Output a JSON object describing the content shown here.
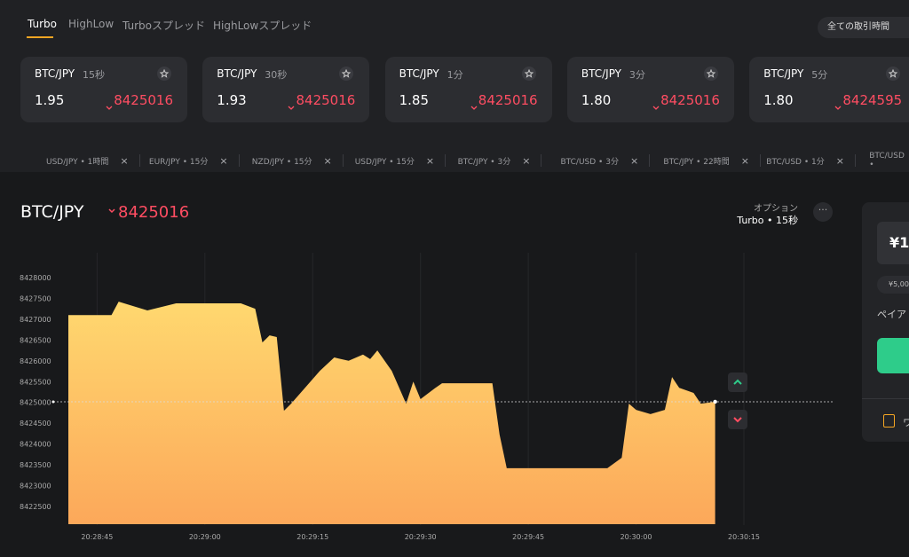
{
  "tabs": [
    "Turbo",
    "HighLow",
    "Turboスプレッド",
    "HighLowスプレッド"
  ],
  "filter": "全ての取引時間",
  "cards": [
    {
      "pair": "BTC/JPY",
      "duration": "15秒",
      "payout": "1.95",
      "price": "8425016"
    },
    {
      "pair": "BTC/JPY",
      "duration": "30秒",
      "payout": "1.93",
      "price": "8425016"
    },
    {
      "pair": "BTC/JPY",
      "duration": "1分",
      "payout": "1.85",
      "price": "8425016"
    },
    {
      "pair": "BTC/JPY",
      "duration": "3分",
      "payout": "1.80",
      "price": "8425016"
    },
    {
      "pair": "BTC/JPY",
      "duration": "5分",
      "payout": "1.80",
      "price": "8424595"
    }
  ],
  "recent": [
    "USD/JPY • 1時間",
    "EUR/JPY • 15分",
    "NZD/JPY • 15分",
    "USD/JPY • 15分",
    "BTC/JPY • 3分",
    "BTC/USD • 3分",
    "BTC/JPY • 22時間",
    "BTC/USD • 1分",
    "BTC/USD •"
  ],
  "asset": {
    "pair": "BTC/JPY",
    "price": "8425016",
    "option_label": "オプション",
    "option": "Turbo • 15秒"
  },
  "panel": {
    "amount": "¥1,",
    "preset": "¥5,00",
    "payout_label": "ペイア",
    "footer": "ワ"
  },
  "chart_data": {
    "type": "area",
    "color_top": "#ffd86f",
    "color_bottom": "#fca85a",
    "x": [
      "20:28:41",
      "20:28:47",
      "20:28:48",
      "20:28:52",
      "20:28:56",
      "20:29:05",
      "20:29:07",
      "20:29:08",
      "20:29:09",
      "20:29:10",
      "20:29:11",
      "20:29:12",
      "20:29:16",
      "20:29:18",
      "20:29:20",
      "20:29:22",
      "20:29:23",
      "20:29:24",
      "20:29:26",
      "20:29:28",
      "20:29:29",
      "20:29:30",
      "20:29:32",
      "20:29:33",
      "20:29:40",
      "20:29:41",
      "20:29:42",
      "20:29:56",
      "20:29:58",
      "20:29:59",
      "20:30:00",
      "20:30:02",
      "20:30:04",
      "20:30:05",
      "20:30:06",
      "20:30:08",
      "20:30:09",
      "20:30:11"
    ],
    "values": [
      8427100,
      8427100,
      8427420,
      8427210,
      8427380,
      8427380,
      8427250,
      8426440,
      8426610,
      8426570,
      8424800,
      8424970,
      8425760,
      8426080,
      8426000,
      8426150,
      8426040,
      8426250,
      8425760,
      8424970,
      8425500,
      8425080,
      8425340,
      8425460,
      8425460,
      8424230,
      8423420,
      8423420,
      8423670,
      8424970,
      8424820,
      8424720,
      8424820,
      8425610,
      8425350,
      8425230,
      8424970,
      8425016
    ],
    "xlim": [
      "20:28:41",
      "20:30:15"
    ],
    "xticks": [
      "20:28:45",
      "20:29:00",
      "20:29:15",
      "20:29:30",
      "20:29:45",
      "20:30:00",
      "20:30:15"
    ],
    "ylim": [
      8422000,
      8428500
    ],
    "yticks": [
      8422500,
      8423000,
      8423500,
      8424000,
      8424500,
      8425000,
      8425500,
      8426000,
      8426500,
      8427000,
      8427500,
      8428000
    ],
    "grid": true
  }
}
